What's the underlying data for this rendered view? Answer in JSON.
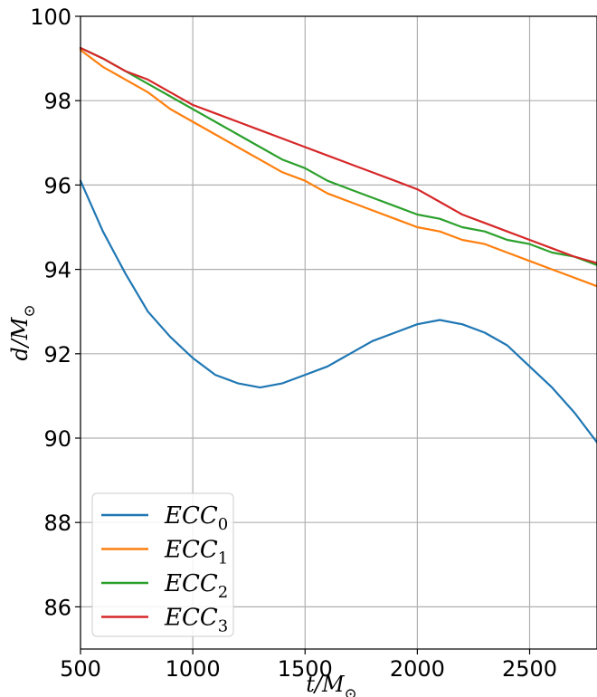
{
  "chart_data": {
    "type": "line",
    "title": "",
    "xlabel": "t/M",
    "xlabel_sub": "⊙",
    "ylabel": "d/M",
    "ylabel_sub": "⊙",
    "xlim": [
      500,
      2800
    ],
    "ylim": [
      85,
      100
    ],
    "xticks": [
      500,
      1000,
      1500,
      2000,
      2500
    ],
    "yticks": [
      86,
      88,
      90,
      92,
      94,
      96,
      98,
      100
    ],
    "grid": true,
    "legend_position": "lower-left",
    "series": [
      {
        "name": "ECC",
        "subscript": "0",
        "color": "#1f77b4",
        "x": [
          500,
          600,
          700,
          800,
          900,
          1000,
          1100,
          1200,
          1300,
          1400,
          1500,
          1600,
          1700,
          1800,
          1900,
          2000,
          2100,
          2200,
          2300,
          2400,
          2500,
          2600,
          2700,
          2800
        ],
        "y": [
          96.1,
          94.9,
          93.9,
          93.0,
          92.4,
          91.9,
          91.5,
          91.3,
          91.2,
          91.3,
          91.5,
          91.7,
          92.0,
          92.3,
          92.5,
          92.7,
          92.8,
          92.7,
          92.5,
          92.2,
          91.7,
          91.2,
          90.6,
          89.9
        ]
      },
      {
        "name": "ECC",
        "subscript": "1",
        "color": "#ff7f0e",
        "x": [
          500,
          600,
          700,
          800,
          900,
          1000,
          1100,
          1200,
          1300,
          1400,
          1500,
          1600,
          1700,
          1800,
          1900,
          2000,
          2100,
          2200,
          2300,
          2400,
          2500,
          2600,
          2700,
          2800
        ],
        "y": [
          99.2,
          98.8,
          98.5,
          98.2,
          97.8,
          97.5,
          97.2,
          96.9,
          96.6,
          96.3,
          96.1,
          95.8,
          95.6,
          95.4,
          95.2,
          95.0,
          94.9,
          94.7,
          94.6,
          94.4,
          94.2,
          94.0,
          93.8,
          93.6
        ]
      },
      {
        "name": "ECC",
        "subscript": "2",
        "color": "#2ca02c",
        "x": [
          500,
          600,
          700,
          800,
          900,
          1000,
          1100,
          1200,
          1300,
          1400,
          1500,
          1600,
          1700,
          1800,
          1900,
          2000,
          2100,
          2200,
          2300,
          2400,
          2500,
          2600,
          2700,
          2800
        ],
        "y": [
          99.25,
          99.0,
          98.7,
          98.4,
          98.1,
          97.8,
          97.5,
          97.2,
          96.9,
          96.6,
          96.4,
          96.1,
          95.9,
          95.7,
          95.5,
          95.3,
          95.2,
          95.0,
          94.9,
          94.7,
          94.6,
          94.4,
          94.3,
          94.1
        ]
      },
      {
        "name": "ECC",
        "subscript": "3",
        "color": "#d62728",
        "x": [
          500,
          600,
          700,
          800,
          900,
          1000,
          1100,
          1200,
          1300,
          1400,
          1500,
          1600,
          1700,
          1800,
          1900,
          2000,
          2100,
          2200,
          2300,
          2400,
          2500,
          2600,
          2700,
          2800
        ],
        "y": [
          99.25,
          99.0,
          98.7,
          98.5,
          98.2,
          97.9,
          97.7,
          97.5,
          97.3,
          97.1,
          96.9,
          96.7,
          96.5,
          96.3,
          96.1,
          95.9,
          95.6,
          95.3,
          95.1,
          94.9,
          94.7,
          94.5,
          94.3,
          94.15
        ]
      }
    ]
  }
}
